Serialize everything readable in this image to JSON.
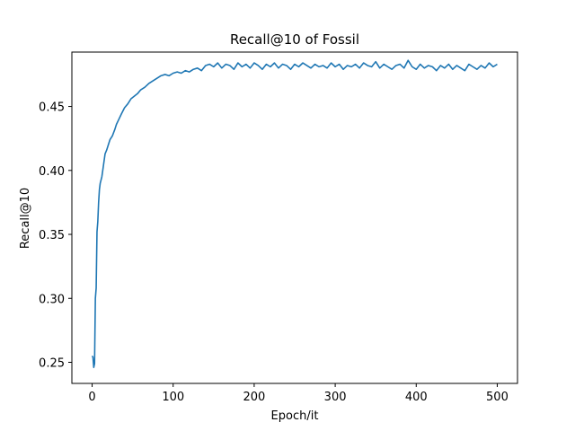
{
  "chart_data": {
    "type": "line",
    "title": "Recall@10 of Fossil",
    "xlabel": "Epoch/it",
    "ylabel": "Recall@10",
    "xlim": [
      -25,
      525
    ],
    "ylim": [
      0.2335,
      0.4925
    ],
    "xticks": [
      0,
      100,
      200,
      300,
      400,
      500
    ],
    "yticks": [
      0.25,
      0.3,
      0.35,
      0.4,
      0.45
    ],
    "xtick_labels": [
      "0",
      "100",
      "200",
      "300",
      "400",
      "500"
    ],
    "ytick_labels": [
      "0.25",
      "0.30",
      "0.35",
      "0.40",
      "0.45"
    ],
    "grid": false,
    "legend": "none",
    "series": [
      {
        "color": "#1f77b4",
        "x": [
          0,
          1,
          2,
          3,
          4,
          5,
          6,
          7,
          8,
          9,
          10,
          12,
          14,
          16,
          18,
          20,
          22,
          25,
          28,
          30,
          33,
          36,
          40,
          44,
          48,
          52,
          56,
          60,
          65,
          70,
          75,
          80,
          85,
          90,
          95,
          100,
          105,
          110,
          115,
          120,
          125,
          130,
          135,
          140,
          145,
          150,
          155,
          160,
          165,
          170,
          175,
          180,
          185,
          190,
          195,
          200,
          205,
          210,
          215,
          220,
          225,
          230,
          235,
          240,
          245,
          250,
          255,
          260,
          265,
          270,
          275,
          280,
          285,
          290,
          295,
          300,
          305,
          310,
          315,
          320,
          325,
          330,
          335,
          340,
          345,
          350,
          355,
          360,
          365,
          370,
          375,
          380,
          385,
          390,
          395,
          400,
          405,
          410,
          415,
          420,
          425,
          430,
          435,
          440,
          445,
          450,
          455,
          460,
          465,
          470,
          475,
          480,
          485,
          490,
          495,
          500
        ],
        "y": [
          0.255,
          0.254,
          0.246,
          0.249,
          0.3,
          0.308,
          0.352,
          0.36,
          0.375,
          0.385,
          0.39,
          0.395,
          0.404,
          0.413,
          0.416,
          0.42,
          0.424,
          0.427,
          0.432,
          0.436,
          0.44,
          0.444,
          0.449,
          0.452,
          0.456,
          0.458,
          0.46,
          0.463,
          0.465,
          0.468,
          0.47,
          0.472,
          0.474,
          0.475,
          0.474,
          0.476,
          0.477,
          0.476,
          0.478,
          0.477,
          0.479,
          0.48,
          0.478,
          0.482,
          0.483,
          0.481,
          0.484,
          0.48,
          0.483,
          0.482,
          0.479,
          0.484,
          0.481,
          0.483,
          0.48,
          0.484,
          0.482,
          0.479,
          0.483,
          0.481,
          0.484,
          0.48,
          0.483,
          0.482,
          0.479,
          0.483,
          0.481,
          0.484,
          0.482,
          0.48,
          0.483,
          0.481,
          0.482,
          0.48,
          0.484,
          0.481,
          0.483,
          0.479,
          0.482,
          0.481,
          0.483,
          0.48,
          0.484,
          0.482,
          0.481,
          0.485,
          0.48,
          0.483,
          0.481,
          0.479,
          0.482,
          0.483,
          0.48,
          0.486,
          0.481,
          0.479,
          0.483,
          0.48,
          0.482,
          0.481,
          0.478,
          0.482,
          0.48,
          0.483,
          0.479,
          0.482,
          0.48,
          0.478,
          0.483,
          0.481,
          0.479,
          0.482,
          0.48,
          0.484,
          0.481,
          0.483
        ]
      }
    ]
  }
}
